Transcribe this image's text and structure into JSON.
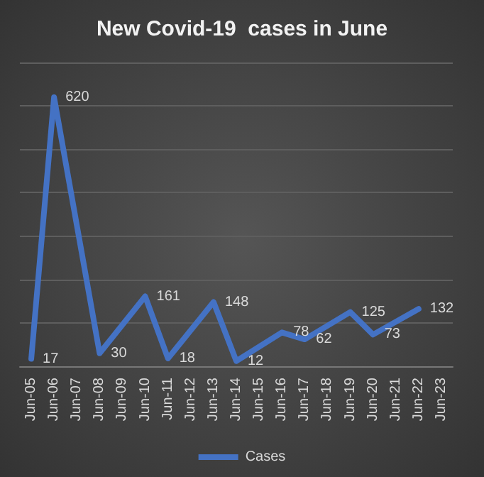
{
  "chart_data": {
    "type": "line",
    "title": "New Covid-19  cases in June",
    "categories": [
      "Jun-05",
      "Jun-06",
      "Jun-07",
      "Jun-08",
      "Jun-09",
      "Jun-10",
      "Jun-11",
      "Jun-12",
      "Jun-13",
      "Jun-14",
      "Jun-15",
      "Jun-16",
      "Jun-17",
      "Jun-18",
      "Jun-19",
      "Jun-20",
      "Jun-21",
      "Jun-22",
      "Jun-23"
    ],
    "series": [
      {
        "name": "Cases",
        "color": "#4472c4",
        "values": [
          17,
          620,
          null,
          30,
          null,
          161,
          18,
          null,
          148,
          12,
          null,
          78,
          62,
          null,
          125,
          73,
          null,
          132,
          null
        ]
      }
    ],
    "tick_labels": "x",
    "grid": "y",
    "legend": "bottom",
    "data_labels": true,
    "marker": "none",
    "line_style": "solid"
  }
}
